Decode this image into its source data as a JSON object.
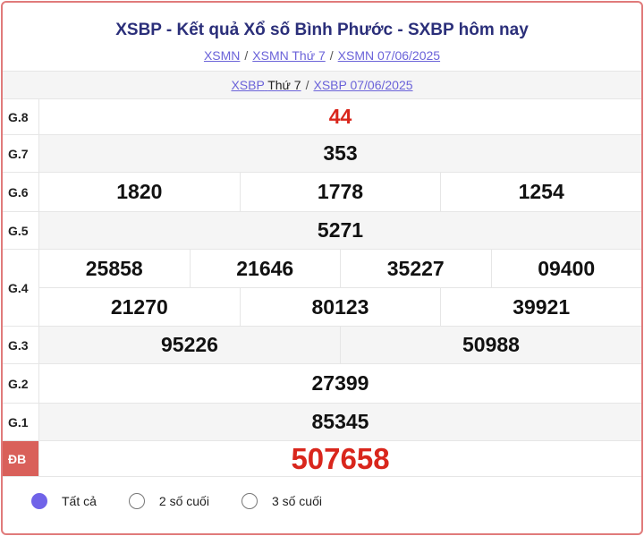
{
  "title": "XSBP - Kết quả Xổ số Bình Phước - SXBP hôm nay",
  "breadcrumbs": [
    "XSMN",
    "XSMN Thứ 7",
    "XSMN 07/06/2025"
  ],
  "sub": {
    "link1": "XSBP",
    "plain": "Thứ 7",
    "link2": "XSBP 07/06/2025"
  },
  "prizes": [
    {
      "label": "G.8",
      "rows": [
        [
          "44"
        ]
      ]
    },
    {
      "label": "G.7",
      "rows": [
        [
          "353"
        ]
      ]
    },
    {
      "label": "G.6",
      "rows": [
        [
          "1820",
          "1778",
          "1254"
        ]
      ]
    },
    {
      "label": "G.5",
      "rows": [
        [
          "5271"
        ]
      ]
    },
    {
      "label": "G.4",
      "rows": [
        [
          "25858",
          "21646",
          "35227",
          "09400"
        ],
        [
          "21270",
          "80123",
          "39921"
        ]
      ]
    },
    {
      "label": "G.3",
      "rows": [
        [
          "95226",
          "50988"
        ]
      ]
    },
    {
      "label": "G.2",
      "rows": [
        [
          "27399"
        ]
      ]
    },
    {
      "label": "G.1",
      "rows": [
        [
          "85345"
        ]
      ]
    },
    {
      "label": "ĐB",
      "rows": [
        [
          "507658"
        ]
      ]
    }
  ],
  "filters": [
    {
      "label": "Tất cả",
      "selected": true
    },
    {
      "label": "2 số cuối",
      "selected": false
    },
    {
      "label": "3 số cuối",
      "selected": false
    }
  ],
  "colors": {
    "accent": "#7063e8",
    "highlight": "#d9261c",
    "title": "#2b2f7a"
  }
}
